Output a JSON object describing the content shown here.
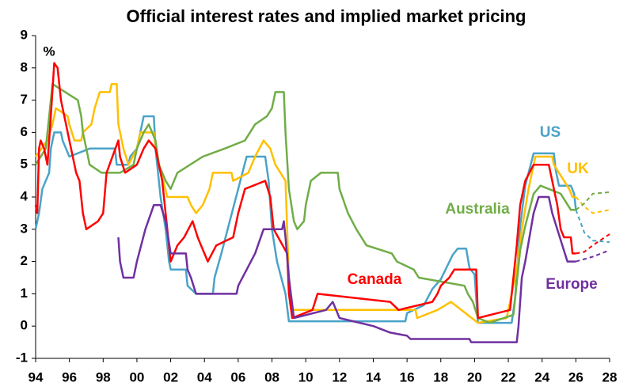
{
  "chart_data": {
    "type": "line",
    "title": "Official interest rates and implied market pricing",
    "y_label": "%",
    "xlim": [
      1994,
      2028
    ],
    "ylim": [
      -1,
      9
    ],
    "xticks": [
      {
        "value": 1994,
        "label": "94"
      },
      {
        "value": 1996,
        "label": "96"
      },
      {
        "value": 1998,
        "label": "98"
      },
      {
        "value": 2000,
        "label": "00"
      },
      {
        "value": 2002,
        "label": "02"
      },
      {
        "value": 2004,
        "label": "04"
      },
      {
        "value": 2006,
        "label": "06"
      },
      {
        "value": 2008,
        "label": "08"
      },
      {
        "value": 2010,
        "label": "10"
      },
      {
        "value": 2012,
        "label": "12"
      },
      {
        "value": 2014,
        "label": "14"
      },
      {
        "value": 2016,
        "label": "16"
      },
      {
        "value": 2018,
        "label": "18"
      },
      {
        "value": 2020,
        "label": "20"
      },
      {
        "value": 2022,
        "label": "22"
      },
      {
        "value": 2024,
        "label": "24"
      },
      {
        "value": 2026,
        "label": "26"
      },
      {
        "value": 2028,
        "label": "28"
      }
    ],
    "yticks": [
      -1,
      0,
      1,
      2,
      3,
      4,
      5,
      6,
      7,
      8,
      9
    ],
    "series": [
      {
        "name": "US",
        "color": "#4aa3c8",
        "x": [
          1994.0,
          1994.2,
          1994.4,
          1994.8,
          1994.9,
          1995.1,
          1995.5,
          1995.6,
          1996.0,
          1997.2,
          1998.7,
          1998.8,
          1999.5,
          1999.6,
          2000.0,
          2000.4,
          2001.0,
          2001.1,
          2001.4,
          2001.7,
          2001.9,
          2002.0,
          2002.9,
          2003.0,
          2003.5,
          2004.5,
          2004.6,
          2005.0,
          2005.5,
          2006.0,
          2006.5,
          2007.6,
          2007.8,
          2008.0,
          2008.3,
          2008.8,
          2009.0,
          2015.9,
          2016.0,
          2017.0,
          2017.5,
          2018.0,
          2018.7,
          2019.0,
          2019.5,
          2019.7,
          2020.0,
          2020.2,
          2022.2,
          2022.4,
          2022.7,
          2023.0,
          2023.5,
          2024.7,
          2024.8,
          2025.0,
          2025.7,
          2025.9,
          2026.0
        ],
        "values": [
          3.0,
          3.5,
          4.25,
          4.75,
          5.5,
          6.0,
          6.0,
          5.75,
          5.25,
          5.5,
          5.5,
          5.0,
          5.0,
          5.25,
          5.5,
          6.5,
          6.5,
          5.5,
          4.0,
          3.0,
          2.0,
          1.75,
          1.75,
          1.25,
          1.0,
          1.0,
          1.5,
          2.25,
          3.25,
          4.25,
          5.25,
          5.25,
          4.5,
          3.0,
          2.0,
          1.0,
          0.15,
          0.15,
          0.4,
          0.65,
          1.15,
          1.45,
          2.2,
          2.4,
          2.4,
          1.8,
          1.6,
          0.1,
          0.1,
          0.85,
          3.1,
          4.35,
          5.35,
          5.35,
          4.85,
          4.35,
          4.35,
          4.1,
          3.6
        ],
        "projection_x": [
          2026.0,
          2026.5,
          2027.0,
          2028.0
        ],
        "projection_values": [
          3.6,
          2.9,
          2.65,
          2.6
        ]
      },
      {
        "name": "UK",
        "color": "#ffc000",
        "x": [
          1994.0,
          1994.7,
          1995.0,
          1995.2,
          1995.9,
          1996.0,
          1996.3,
          1996.7,
          1996.8,
          1997.3,
          1997.5,
          1997.8,
          1998.4,
          1998.5,
          1998.8,
          1998.9,
          1999.2,
          1999.5,
          2000.0,
          2000.2,
          2001.0,
          2001.2,
          2001.8,
          2003.0,
          2003.2,
          2003.5,
          2003.9,
          2004.3,
          2004.5,
          2005.6,
          2005.7,
          2006.6,
          2007.0,
          2007.5,
          2007.9,
          2008.2,
          2008.8,
          2008.9,
          2009.0,
          2009.2,
          2016.5,
          2016.6,
          2017.8,
          2018.6,
          2020.2,
          2021.9,
          2022.1,
          2022.5,
          2022.8,
          2023.2,
          2023.6,
          2024.6,
          2024.7,
          2025.0,
          2025.3,
          2025.6,
          2025.8,
          2026.0
        ],
        "values": [
          5.25,
          5.75,
          6.25,
          6.75,
          6.5,
          6.25,
          5.75,
          5.75,
          6.0,
          6.25,
          6.75,
          7.25,
          7.25,
          7.5,
          7.5,
          6.25,
          5.5,
          5.0,
          5.5,
          6.0,
          6.0,
          5.25,
          4.0,
          4.0,
          3.75,
          3.5,
          3.75,
          4.25,
          4.75,
          4.75,
          4.5,
          4.75,
          5.25,
          5.75,
          5.5,
          5.0,
          4.5,
          3.0,
          1.5,
          0.5,
          0.5,
          0.25,
          0.5,
          0.75,
          0.1,
          0.25,
          0.75,
          1.75,
          3.0,
          4.25,
          5.25,
          5.25,
          5.0,
          4.75,
          4.5,
          4.25,
          4.0,
          4.0
        ],
        "projection_x": [
          2026.0,
          2026.5,
          2027.0,
          2028.0
        ],
        "projection_values": [
          4.0,
          3.7,
          3.5,
          3.6
        ]
      },
      {
        "name": "Australia",
        "color": "#70ad47",
        "x": [
          1994.0,
          1994.6,
          1994.8,
          1995.0,
          1996.5,
          1996.7,
          1996.8,
          1997.0,
          1997.2,
          1997.9,
          1999.0,
          1999.8,
          2000.0,
          2000.4,
          2000.7,
          2001.1,
          2001.3,
          2001.7,
          2002.0,
          2002.4,
          2003.9,
          2005.2,
          2006.4,
          2006.7,
          2007.0,
          2007.7,
          2008.0,
          2008.2,
          2008.7,
          2008.8,
          2009.0,
          2009.3,
          2009.5,
          2009.9,
          2010.0,
          2010.3,
          2010.9,
          2011.9,
          2012.0,
          2012.5,
          2013.0,
          2013.6,
          2015.1,
          2015.4,
          2016.4,
          2016.7,
          2019.4,
          2019.6,
          2019.9,
          2020.2,
          2020.9,
          2022.3,
          2022.7,
          2023.0,
          2023.5,
          2023.9,
          2025.1,
          2025.4,
          2025.7,
          2026.0
        ],
        "values": [
          5.0,
          5.5,
          6.5,
          7.5,
          7.0,
          6.5,
          6.0,
          5.5,
          5.0,
          4.75,
          4.75,
          5.0,
          5.5,
          6.0,
          6.25,
          5.75,
          5.0,
          4.5,
          4.25,
          4.75,
          5.25,
          5.5,
          5.75,
          6.0,
          6.25,
          6.5,
          6.75,
          7.25,
          7.25,
          6.0,
          4.25,
          3.25,
          3.0,
          3.25,
          3.75,
          4.5,
          4.75,
          4.75,
          4.25,
          3.5,
          3.0,
          2.5,
          2.25,
          2.0,
          1.75,
          1.5,
          1.25,
          1.0,
          0.75,
          0.25,
          0.1,
          0.35,
          2.35,
          3.1,
          4.1,
          4.35,
          4.1,
          3.85,
          3.6,
          3.6
        ],
        "projection_x": [
          2026.0,
          2026.5,
          2027.0,
          2028.0
        ],
        "projection_values": [
          3.6,
          3.8,
          4.1,
          4.15
        ]
      },
      {
        "name": "Canada",
        "color": "#ff0000",
        "x": [
          1994.0,
          1994.1,
          1994.2,
          1994.3,
          1994.5,
          1994.7,
          1994.9,
          1995.1,
          1995.3,
          1995.5,
          1995.8,
          1996.0,
          1996.2,
          1996.4,
          1996.6,
          1996.8,
          1997.0,
          1997.7,
          1998.0,
          1998.2,
          1998.9,
          1999.0,
          1999.3,
          2000.0,
          2000.4,
          2000.7,
          2001.1,
          2001.5,
          2001.8,
          2002.0,
          2002.4,
          2002.8,
          2003.3,
          2003.6,
          2004.0,
          2004.2,
          2004.7,
          2005.7,
          2006.0,
          2006.4,
          2007.6,
          2007.9,
          2008.1,
          2008.9,
          2009.0,
          2009.2,
          2010.4,
          2010.7,
          2015.0,
          2015.5,
          2017.5,
          2017.8,
          2018.0,
          2018.5,
          2018.8,
          2020.1,
          2020.2,
          2022.1,
          2022.3,
          2022.5,
          2022.7,
          2023.0,
          2023.5,
          2024.4,
          2024.6,
          2024.9,
          2025.1,
          2025.3,
          2025.7,
          2025.8,
          2026.0
        ],
        "values": [
          3.75,
          3.5,
          5.5,
          5.75,
          5.5,
          5.0,
          6.5,
          8.15,
          8.0,
          7.0,
          6.25,
          5.75,
          5.25,
          4.75,
          4.5,
          3.5,
          3.0,
          3.25,
          3.5,
          4.75,
          5.75,
          5.25,
          4.75,
          5.0,
          5.5,
          5.75,
          5.5,
          4.5,
          3.0,
          2.0,
          2.5,
          2.75,
          3.25,
          2.75,
          2.25,
          2.0,
          2.5,
          2.75,
          3.5,
          4.25,
          4.5,
          4.0,
          3.0,
          2.25,
          1.0,
          0.25,
          0.5,
          1.0,
          0.75,
          0.5,
          0.75,
          1.0,
          1.25,
          1.5,
          1.75,
          1.75,
          0.25,
          0.5,
          1.5,
          2.5,
          3.75,
          4.5,
          5.0,
          5.0,
          4.5,
          3.75,
          3.0,
          2.75,
          2.75,
          2.25,
          2.25
        ],
        "projection_x": [
          2026.0,
          2026.5,
          2027.0,
          2028.0
        ],
        "projection_values": [
          2.25,
          2.3,
          2.5,
          2.85
        ]
      },
      {
        "name": "Europe",
        "color": "#7030a0",
        "x": [
          1998.9,
          1999.0,
          1999.2,
          1999.8,
          2000.0,
          2000.5,
          2001.0,
          2001.4,
          2001.7,
          2002.0,
          2002.9,
          2003.0,
          2003.2,
          2003.5,
          2005.9,
          2006.0,
          2007.0,
          2007.5,
          2008.6,
          2008.7,
          2008.8,
          2009.0,
          2009.3,
          2011.2,
          2011.6,
          2011.8,
          2012.0,
          2014.0,
          2014.5,
          2015.0,
          2016.0,
          2016.2,
          2019.7,
          2019.8,
          2022.5,
          2022.6,
          2022.8,
          2023.0,
          2023.5,
          2023.8,
          2024.4,
          2024.6,
          2024.9,
          2025.2,
          2025.5,
          2026.0
        ],
        "values": [
          2.75,
          2.0,
          1.5,
          1.5,
          2.0,
          3.0,
          3.75,
          3.75,
          3.25,
          2.25,
          2.25,
          1.75,
          1.5,
          1.0,
          1.0,
          1.25,
          2.25,
          3.0,
          3.0,
          3.25,
          2.75,
          1.5,
          0.25,
          0.5,
          0.75,
          0.5,
          0.25,
          0.0,
          -0.1,
          -0.2,
          -0.3,
          -0.4,
          -0.4,
          -0.5,
          -0.5,
          0.0,
          1.5,
          2.0,
          3.5,
          4.0,
          4.0,
          3.5,
          3.0,
          2.5,
          2.0,
          2.0
        ],
        "projection_x": [
          2026.0,
          2027.0,
          2028.0
        ],
        "projection_values": [
          2.0,
          2.15,
          2.35
        ]
      }
    ]
  }
}
